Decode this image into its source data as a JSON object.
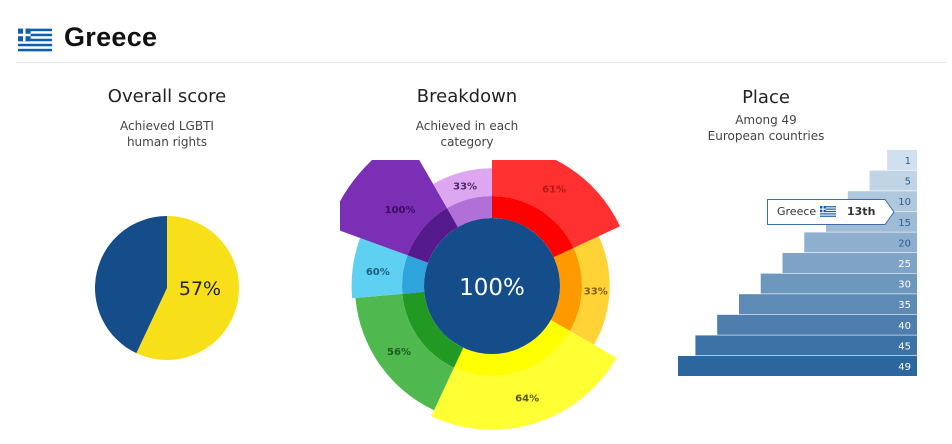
{
  "country": {
    "name": "Greece",
    "flag_icon": "greece-flag-icon"
  },
  "overall": {
    "title": "Overall score",
    "subtitle_line1": "Achieved LGBTI",
    "subtitle_line2": "human rights"
  },
  "breakdown": {
    "title": "Breakdown",
    "subtitle_line1": "Achieved in each",
    "subtitle_line2": "category"
  },
  "place": {
    "title": "Place",
    "subtitle_line1": "Among 49",
    "subtitle_line2": "European countries",
    "tooltip": {
      "country": "Greece",
      "rank": "13th"
    }
  },
  "colors": {
    "navy": "#154c8a",
    "yellow": "#f7e01a",
    "red": "#ff0000",
    "orange": "#ff9900",
    "bright_yellow": "#ffff00",
    "green": "#229922",
    "light_blue": "#2ea3dc",
    "dark_purple": "#551a8b",
    "purple": "#a45fd0"
  },
  "chart_data": [
    {
      "type": "pie",
      "slices": [
        {
          "label": "57%",
          "value": 57,
          "color": "#f7e01a"
        },
        {
          "label": "",
          "value": 43,
          "color": "#154c8a"
        }
      ]
    },
    {
      "type": "pie",
      "center_label": "100%",
      "categories": [
        {
          "start_deg": 0,
          "end_deg": 65,
          "percent": 61,
          "label": "61%",
          "inner_color": "#ff0000",
          "outer_color": "#ff3030",
          "label_color": "#b21a1a"
        },
        {
          "start_deg": 65,
          "end_deg": 120,
          "percent": 33,
          "label": "33%",
          "inner_color": "#ff9900",
          "outer_color": "#ffd236",
          "label_color": "#8a5a00"
        },
        {
          "start_deg": 120,
          "end_deg": 205,
          "percent": 64,
          "label": "64%",
          "inner_color": "#ffff00",
          "outer_color": "#ffff33",
          "label_color": "#555500"
        },
        {
          "start_deg": 205,
          "end_deg": 265,
          "percent": 56,
          "label": "56%",
          "inner_color": "#229922",
          "outer_color": "#4fb84f",
          "label_color": "#1d5e1d"
        },
        {
          "start_deg": 265,
          "end_deg": 290,
          "percent": 60,
          "label": "60%",
          "inner_color": "#2ea3dc",
          "outer_color": "#5ed0f2",
          "label_color": "#1c5e80"
        },
        {
          "start_deg": 290,
          "end_deg": 330,
          "percent": 100,
          "label": "100%",
          "inner_color": "#551a8b",
          "outer_color": "#7a2fb5",
          "label_color": "#3a0f60"
        },
        {
          "start_deg": 330,
          "end_deg": 360,
          "percent": 33,
          "label": "33%",
          "inner_color": "#b070d8",
          "outer_color": "#dca6f0",
          "label_color": "#4d2a66"
        }
      ]
    },
    {
      "type": "bar",
      "categories": [
        "1",
        "5",
        "10",
        "15",
        "20",
        "25",
        "30",
        "35",
        "40",
        "45",
        "49"
      ],
      "values": [
        1,
        5,
        10,
        15,
        20,
        25,
        30,
        35,
        40,
        45,
        49
      ],
      "highlight": {
        "rank": 13
      }
    }
  ]
}
